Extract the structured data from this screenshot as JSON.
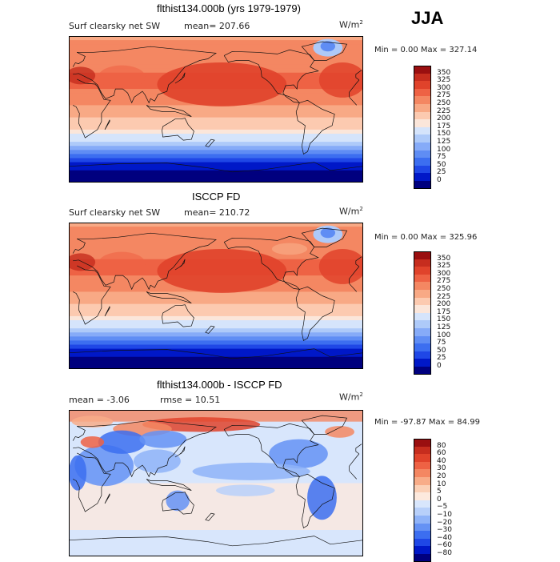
{
  "season": "JJA",
  "colors": {
    "abs_scale": [
      "#00007f",
      "#0018c8",
      "#1f47e6",
      "#3c6ef0",
      "#5f8df4",
      "#86abf8",
      "#aecaf9",
      "#d5e4fb",
      "#fbe6da",
      "#fccab0",
      "#f8a985",
      "#f48762",
      "#ee6244",
      "#e0432b",
      "#c62d1e",
      "#9a0f10"
    ],
    "diff_scale": [
      "#00007f",
      "#0018c8",
      "#1f47e6",
      "#3c6ef0",
      "#6592f4",
      "#8fb3f8",
      "#b8d0fa",
      "#d8e6fc",
      "#fde9dd",
      "#fbd0b6",
      "#f8ac88",
      "#f48762",
      "#ee6244",
      "#e0432b",
      "#c62d1e",
      "#9a0f10"
    ]
  },
  "panels": [
    {
      "title": "flthist134.000b (yrs 1979-1979)",
      "variable": "Surf clearsky net SW",
      "mean_text": "mean= 207.66",
      "units": "W/m",
      "units_sup": "2",
      "minmax_text": "Min =    0.00 Max = 327.14",
      "kind": "abs"
    },
    {
      "title": "ISCCP FD",
      "variable": "Surf clearsky net SW",
      "mean_text": "mean= 210.72",
      "units": "W/m",
      "units_sup": "2",
      "minmax_text": "Min =    0.00 Max = 325.96",
      "kind": "abs"
    },
    {
      "title": "flthist134.000b - ISCCP FD",
      "variable": "",
      "mean_text": "mean =   -3.06",
      "rmse_text": "rmse =   10.51",
      "units": "W/m",
      "units_sup": "2",
      "minmax_text": "Min = -97.87 Max =  84.99",
      "kind": "diff"
    }
  ],
  "chart_data": [
    {
      "type": "heatmap",
      "title": "flthist134.000b (yrs 1979-1979)",
      "subtitle": "Surf clearsky net SW",
      "mean": 207.66,
      "min": 0.0,
      "max": 327.14,
      "units": "W/m2",
      "colorbar_levels": [
        "350",
        "325",
        "300",
        "275",
        "250",
        "225",
        "200",
        "175",
        "150",
        "125",
        "100",
        "75",
        "50",
        "25",
        "0"
      ],
      "zonal_profile": {
        "lat": [
          90,
          75,
          60,
          45,
          30,
          15,
          0,
          -15,
          -30,
          -45,
          -60,
          -75,
          -90
        ],
        "value": [
          265,
          290,
          285,
          300,
          305,
          290,
          265,
          245,
          205,
          150,
          75,
          15,
          0
        ]
      }
    },
    {
      "type": "heatmap",
      "title": "ISCCP FD",
      "subtitle": "Surf clearsky net SW",
      "mean": 210.72,
      "min": 0.0,
      "max": 325.96,
      "units": "W/m2",
      "colorbar_levels": [
        "350",
        "325",
        "300",
        "275",
        "250",
        "225",
        "200",
        "175",
        "150",
        "125",
        "100",
        "75",
        "50",
        "25",
        "0"
      ],
      "zonal_profile": {
        "lat": [
          90,
          75,
          60,
          45,
          30,
          15,
          0,
          -15,
          -30,
          -45,
          -60,
          -75,
          -90
        ],
        "value": [
          260,
          290,
          290,
          300,
          305,
          292,
          268,
          248,
          208,
          150,
          75,
          15,
          0
        ]
      }
    },
    {
      "type": "heatmap",
      "title": "flthist134.000b - ISCCP FD",
      "mean": -3.06,
      "rmse": 10.51,
      "min": -97.87,
      "max": 84.99,
      "units": "W/m2",
      "colorbar_levels": [
        "80",
        "60",
        "40",
        "30",
        "20",
        "10",
        "5",
        "0",
        "−5",
        "−10",
        "−20",
        "−30",
        "−40",
        "−60",
        "−80"
      ]
    }
  ]
}
